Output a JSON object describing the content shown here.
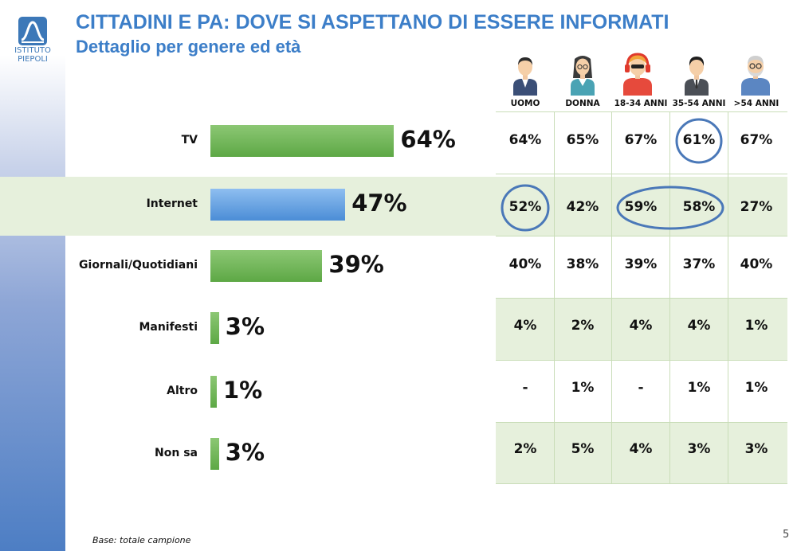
{
  "header": {
    "title": "CITTADINI E PA: DOVE SI ASPETTANO DI ESSERE INFORMATI",
    "subtitle": "Dettaglio per genere ed età"
  },
  "logo": {
    "line1": "ISTITUTO",
    "line2": "PIEPOLI"
  },
  "colors": {
    "green": "#6ab04c",
    "blue": "#5a9ae0",
    "title": "#3c7ec8",
    "band": "#e6f0dc",
    "circle": "#4a78b8"
  },
  "columns": [
    {
      "label": "UOMO",
      "avatar": "man-icon"
    },
    {
      "label": "DONNA",
      "avatar": "woman-icon"
    },
    {
      "label": "18-34 ANNI",
      "avatar": "young-person-icon"
    },
    {
      "label": "35-54 ANNI",
      "avatar": "adult-man-icon"
    },
    {
      "label": ">54 ANNI",
      "avatar": "senior-man-icon"
    }
  ],
  "chart_data": {
    "type": "bar",
    "orientation": "horizontal",
    "title": "CITTADINI E PA: DOVE SI ASPETTANO DI ESSERE INFORMATI",
    "subtitle": "Dettaglio per genere ed età",
    "categories": [
      "TV",
      "Internet",
      "Giornali/Quotidiani",
      "Manifesti",
      "Altro",
      "Non sa"
    ],
    "values": [
      64,
      47,
      39,
      3,
      1,
      3
    ],
    "value_labels": [
      "64%",
      "47%",
      "39%",
      "3%",
      "1%",
      "3%"
    ],
    "bar_colors": [
      "green",
      "blue",
      "green",
      "green",
      "green",
      "green"
    ],
    "xlim": [
      0,
      100
    ],
    "table": {
      "columns": [
        "UOMO",
        "DONNA",
        "18-34 ANNI",
        "35-54 ANNI",
        ">54 ANNI"
      ],
      "rows": [
        [
          "64%",
          "65%",
          "67%",
          "61%",
          "67%"
        ],
        [
          "52%",
          "42%",
          "59%",
          "58%",
          "27%"
        ],
        [
          "40%",
          "38%",
          "39%",
          "37%",
          "40%"
        ],
        [
          "4%",
          "2%",
          "4%",
          "4%",
          "1%"
        ],
        [
          "-",
          "1%",
          "-",
          "1%",
          "1%"
        ],
        [
          "2%",
          "5%",
          "4%",
          "3%",
          "3%"
        ]
      ]
    }
  },
  "footnote": "Base: totale campione",
  "page_number": "5"
}
